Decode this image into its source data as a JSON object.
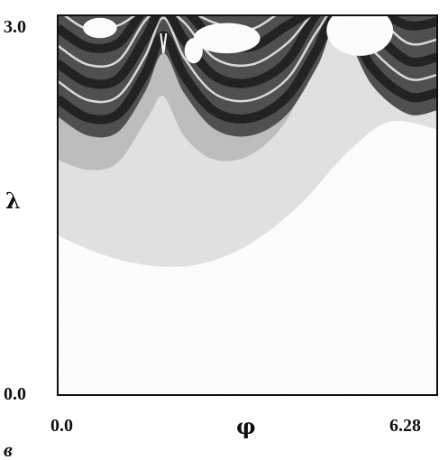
{
  "chart_data": {
    "type": "heatmap",
    "panel_label": "в",
    "xlabel": "φ",
    "ylabel": "λ",
    "xlim": [
      0.0,
      6.28
    ],
    "ylim": [
      0.0,
      3.0
    ],
    "x_tick_labels": [
      "0.0",
      "6.28"
    ],
    "y_tick_labels": [
      "0.0",
      "3.0"
    ],
    "grid": false,
    "legend": "none",
    "colors": {
      "background": "#ffffff",
      "frame": "#111111",
      "level_0": "#ffffff",
      "level_1": "#e2e2e2",
      "level_2": "#bdbdbd",
      "level_3": "#8a8a8a",
      "level_4": "#4a4a4a",
      "level_5": "#161616"
    },
    "boundaries": [
      {
        "name": "light-region-lower-edge",
        "x": [
          0.0,
          0.8,
          1.6,
          2.4,
          3.2,
          4.0,
          4.8,
          5.5,
          6.28
        ],
        "y": [
          1.26,
          1.1,
          1.02,
          1.04,
          1.2,
          1.5,
          1.92,
          2.16,
          2.1
        ]
      },
      {
        "name": "mid-region-lower-edge",
        "x": [
          0.0,
          0.5,
          1.0,
          1.5,
          1.75,
          2.1,
          2.6,
          3.2,
          3.8,
          4.3,
          4.65
        ],
        "y": [
          1.86,
          1.78,
          1.84,
          2.2,
          2.36,
          2.04,
          1.86,
          1.9,
          2.18,
          2.7,
          2.9
        ]
      },
      {
        "name": "dark-region-lower-edge",
        "x": [
          0.0,
          0.5,
          1.0,
          1.45,
          1.75,
          2.1,
          2.6,
          3.2,
          3.8,
          4.3,
          4.65,
          5.2,
          5.8,
          6.28
        ],
        "y": [
          2.2,
          2.05,
          2.08,
          2.4,
          2.7,
          2.38,
          2.1,
          2.05,
          2.22,
          2.6,
          2.92,
          2.45,
          2.22,
          2.25
        ]
      },
      {
        "name": "cusp-positions",
        "x": [
          0.85,
          1.75,
          2.2,
          4.65
        ],
        "y": [
          3.0,
          2.7,
          3.0,
          2.92
        ]
      }
    ]
  }
}
